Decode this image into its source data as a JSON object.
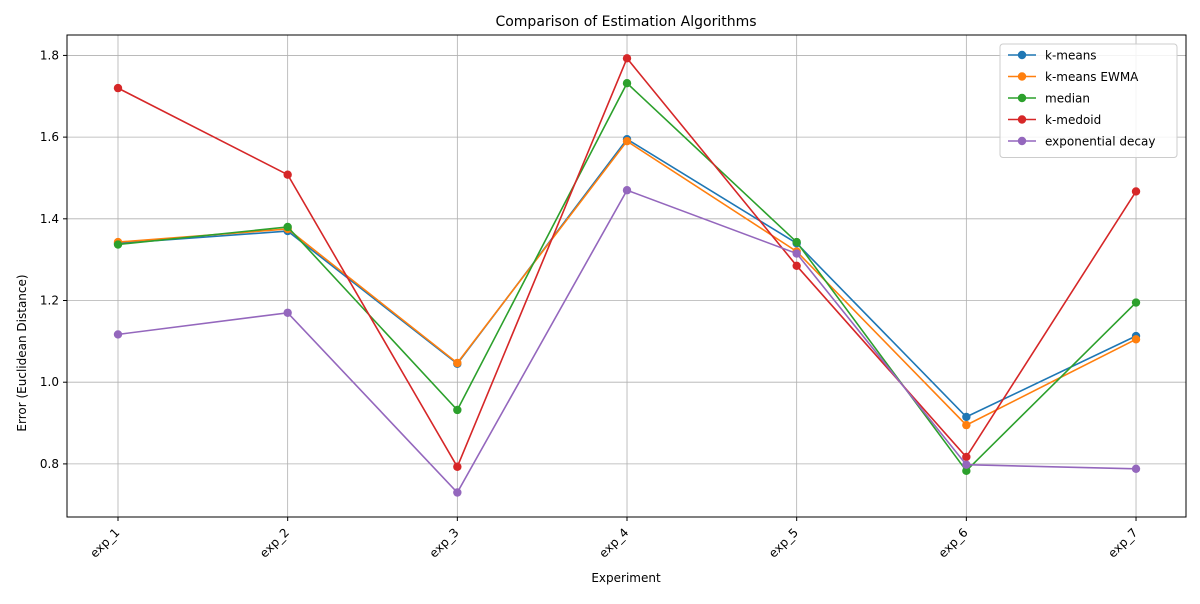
{
  "chart_data": {
    "type": "line",
    "title": "Comparison of Estimation Algorithms",
    "xlabel": "Experiment",
    "ylabel": "Error (Euclidean Distance)",
    "categories": [
      "exp_1",
      "exp_2",
      "exp_3",
      "exp_4",
      "exp_5",
      "exp_6",
      "exp_7"
    ],
    "ylim": [
      0.67,
      1.85
    ],
    "yticks": [
      0.8,
      1.0,
      1.2,
      1.4,
      1.6,
      1.8
    ],
    "ytick_labels": [
      "0.8",
      "1.0",
      "1.2",
      "1.4",
      "1.6",
      "1.8"
    ],
    "grid": true,
    "legend_position": "top-right",
    "series": [
      {
        "name": "k-means",
        "color": "#1f77b4",
        "values": [
          1.34,
          1.37,
          1.045,
          1.595,
          1.34,
          0.915,
          1.113
        ]
      },
      {
        "name": "k-means EWMA",
        "color": "#ff7f0e",
        "values": [
          1.343,
          1.375,
          1.047,
          1.59,
          1.32,
          0.895,
          1.105
        ]
      },
      {
        "name": "median",
        "color": "#2ca02c",
        "values": [
          1.337,
          1.38,
          0.932,
          1.732,
          1.343,
          0.783,
          1.195
        ]
      },
      {
        "name": "k-medoid",
        "color": "#d62728",
        "values": [
          1.72,
          1.508,
          0.793,
          1.793,
          1.285,
          0.817,
          1.467
        ]
      },
      {
        "name": "exponential decay",
        "color": "#9467bd",
        "values": [
          1.117,
          1.17,
          0.73,
          1.47,
          1.315,
          0.798,
          0.788
        ]
      }
    ]
  }
}
